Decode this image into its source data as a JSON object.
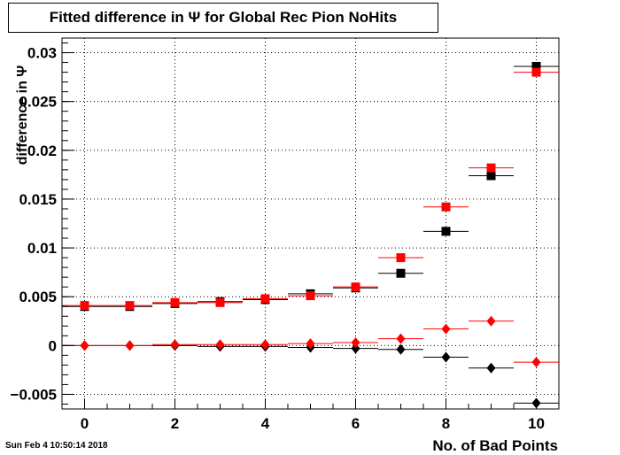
{
  "title": "Fitted difference in  Ψ  for Global Rec Pion NoHits",
  "timestamp": "Sun Feb  4 10:50:14 2018",
  "chart_data": {
    "type": "scatter",
    "title": "Fitted difference in  Ψ  for Global Rec Pion NoHits",
    "xlabel": "No. of Bad Points",
    "ylabel": "difference in  Ψ",
    "xlim": [
      -0.5,
      10.5
    ],
    "ylim": [
      -0.0065,
      0.0315
    ],
    "grid": true,
    "x_ticks": [
      0,
      2,
      4,
      6,
      8,
      10
    ],
    "y_ticks": [
      -0.005,
      0,
      0.005,
      0.01,
      0.015,
      0.02,
      0.025,
      0.03
    ],
    "y_tick_labels": [
      "−0.005",
      "0",
      "0.005",
      "0.01",
      "0.015",
      "0.02",
      "0.025",
      "0.03"
    ],
    "x": [
      0,
      1,
      2,
      3,
      4,
      5,
      6,
      7,
      8,
      9,
      10
    ],
    "series": [
      {
        "color": "#000000",
        "marker": "square",
        "values": [
          0.004,
          0.004,
          0.0043,
          0.0045,
          0.0047,
          0.0053,
          0.0059,
          0.0074,
          0.0117,
          0.0174,
          0.0286
        ]
      },
      {
        "color": "#ff0000",
        "marker": "square",
        "values": [
          0.0041,
          0.0041,
          0.0044,
          0.0044,
          0.0048,
          0.0051,
          0.006,
          0.009,
          0.0142,
          0.0182,
          0.028
        ]
      },
      {
        "color": "#000000",
        "marker": "diamond",
        "values": [
          0,
          0,
          0,
          -0.0001,
          -0.0001,
          -0.0002,
          -0.0003,
          -0.0004,
          -0.0012,
          -0.0023,
          -0.0059
        ]
      },
      {
        "color": "#ff0000",
        "marker": "diamond",
        "values": [
          0,
          0,
          0.0001,
          0.0001,
          0.0001,
          0.0002,
          0.0003,
          0.0007,
          0.0017,
          0.0025,
          -0.0017
        ]
      }
    ]
  }
}
